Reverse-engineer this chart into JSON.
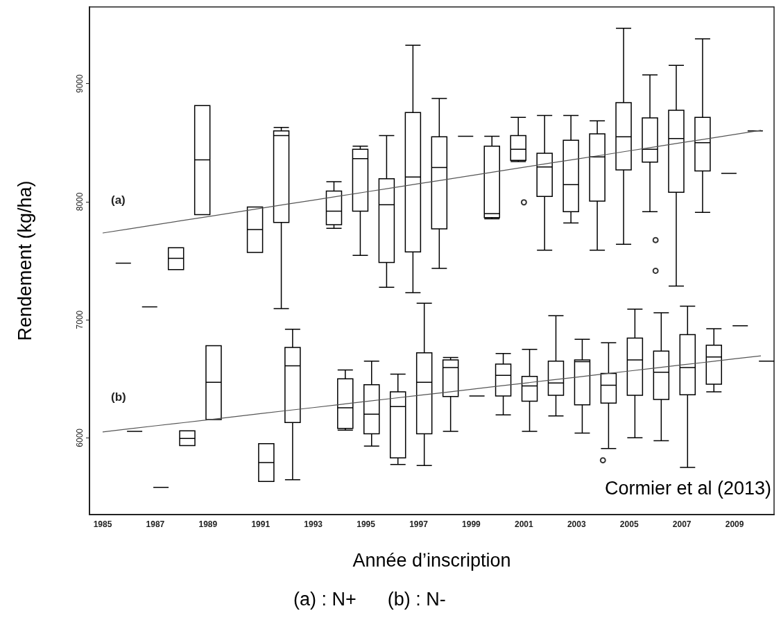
{
  "chart_data": {
    "type": "box",
    "xlabel": "Année d’inscription",
    "ylabel": "Rendement (kg/ha)",
    "categories": [
      "1985",
      null,
      "1987",
      null,
      "1989",
      null,
      "1991",
      null,
      "1993",
      null,
      "1995",
      null,
      "1997",
      null,
      "1999",
      null,
      "2001",
      null,
      "2003",
      null,
      "2005",
      null,
      "2007",
      null,
      "2009",
      null
    ],
    "ylim": [
      5350,
      9650
    ],
    "yticks": [
      6000,
      7000,
      8000,
      9000
    ],
    "series": [
      {
        "color": "#000000",
        "boxes": [
          null,
          {
            "low": 7480,
            "q1": 7480,
            "median": 7480,
            "q3": 7480,
            "high": 7480
          },
          {
            "low": 7110,
            "q1": 7110,
            "median": 7110,
            "q3": 7110,
            "high": 7110
          },
          {
            "low": 7425,
            "q1": 7425,
            "median": 7520,
            "q3": 7610,
            "high": 7610
          },
          {
            "low": 7890,
            "q1": 7890,
            "median": 8355,
            "q3": 8815,
            "high": 8815
          },
          null,
          {
            "low": 7570,
            "q1": 7570,
            "median": 7765,
            "q3": 7955,
            "high": 7955
          },
          {
            "low": 7095,
            "q1": 7825,
            "median": 8560,
            "q3": 8600,
            "high": 8630
          },
          null,
          {
            "low": 7775,
            "q1": 7805,
            "median": 7920,
            "q3": 8090,
            "high": 8170
          },
          {
            "low": 7545,
            "q1": 7920,
            "median": 8365,
            "q3": 8445,
            "high": 8470
          },
          {
            "low": 7275,
            "q1": 7485,
            "median": 7975,
            "q3": 8195,
            "high": 8560
          },
          {
            "low": 7230,
            "q1": 7575,
            "median": 8210,
            "q3": 8755,
            "high": 9325
          },
          {
            "low": 7435,
            "q1": 7770,
            "median": 8290,
            "q3": 8550,
            "high": 8875
          },
          {
            "low": 8555,
            "q1": 8555,
            "median": 8555,
            "q3": 8555,
            "high": 8555
          },
          {
            "low": 7855,
            "q1": 7865,
            "median": 7900,
            "q3": 8470,
            "high": 8555
          },
          {
            "low": 8340,
            "q1": 8350,
            "median": 8445,
            "q3": 8560,
            "high": 8715,
            "outliers": [
              7995
            ]
          },
          {
            "low": 7590,
            "q1": 8045,
            "median": 8295,
            "q3": 8410,
            "high": 8730
          },
          {
            "low": 7820,
            "q1": 7915,
            "median": 8145,
            "q3": 8520,
            "high": 8730
          },
          {
            "low": 7590,
            "q1": 8005,
            "median": 8380,
            "q3": 8575,
            "high": 8685
          },
          {
            "low": 7640,
            "q1": 8270,
            "median": 8550,
            "q3": 8840,
            "high": 9470
          },
          {
            "low": 7915,
            "q1": 8335,
            "median": 8445,
            "q3": 8710,
            "high": 9075,
            "outliers": [
              7675,
              7415
            ]
          },
          {
            "low": 7285,
            "q1": 8080,
            "median": 8535,
            "q3": 8775,
            "high": 9155
          },
          {
            "low": 7910,
            "q1": 8260,
            "median": 8500,
            "q3": 8715,
            "high": 9380
          },
          {
            "low": 8240,
            "q1": 8240,
            "median": 8240,
            "q3": 8240,
            "high": 8240
          },
          {
            "low": 8600,
            "q1": 8600,
            "median": 8600,
            "q3": 8600,
            "high": 8600
          }
        ]
      },
      {
        "color": "#000000",
        "boxes": [
          null,
          {
            "low": 6055,
            "q1": 6055,
            "median": 6055,
            "q3": 6055,
            "high": 6055
          },
          {
            "low": 5580,
            "q1": 5580,
            "median": 5580,
            "q3": 5580,
            "high": 5580
          },
          {
            "low": 5935,
            "q1": 5935,
            "median": 5995,
            "q3": 6060,
            "high": 6060
          },
          {
            "low": 6155,
            "q1": 6155,
            "median": 6470,
            "q3": 6780,
            "high": 6780
          },
          null,
          {
            "low": 5630,
            "q1": 5630,
            "median": 5790,
            "q3": 5950,
            "high": 5950
          },
          {
            "low": 5645,
            "q1": 6130,
            "median": 6610,
            "q3": 6765,
            "high": 6920
          },
          null,
          {
            "low": 6065,
            "q1": 6080,
            "median": 6255,
            "q3": 6500,
            "high": 6575
          },
          {
            "low": 5930,
            "q1": 6035,
            "median": 6200,
            "q3": 6450,
            "high": 6650
          },
          {
            "low": 5775,
            "q1": 5830,
            "median": 6265,
            "q3": 6390,
            "high": 6540
          },
          {
            "low": 5765,
            "q1": 6035,
            "median": 6470,
            "q3": 6720,
            "high": 7140
          },
          {
            "low": 6055,
            "q1": 6350,
            "median": 6595,
            "q3": 6660,
            "high": 6680
          },
          {
            "low": 6355,
            "q1": 6355,
            "median": 6355,
            "q3": 6355,
            "high": 6355
          },
          {
            "low": 6195,
            "q1": 6355,
            "median": 6530,
            "q3": 6625,
            "high": 6715
          },
          {
            "low": 6055,
            "q1": 6310,
            "median": 6440,
            "q3": 6520,
            "high": 6750
          },
          {
            "low": 6185,
            "q1": 6360,
            "median": 6465,
            "q3": 6650,
            "high": 7035
          },
          {
            "low": 6040,
            "q1": 6280,
            "median": 6645,
            "q3": 6660,
            "high": 6835
          },
          {
            "low": 5910,
            "q1": 6295,
            "median": 6445,
            "q3": 6545,
            "high": 6805,
            "outliers": [
              5810
            ]
          },
          {
            "low": 6000,
            "q1": 6360,
            "median": 6660,
            "q3": 6845,
            "high": 7090
          },
          {
            "low": 5975,
            "q1": 6325,
            "median": 6555,
            "q3": 6735,
            "high": 7060
          },
          {
            "low": 5750,
            "q1": 6365,
            "median": 6595,
            "q3": 6875,
            "high": 7115
          },
          {
            "low": 6390,
            "q1": 6455,
            "median": 6685,
            "q3": 6785,
            "high": 6925
          },
          {
            "low": 6950,
            "q1": 6950,
            "median": 6950,
            "q3": 6950,
            "high": 6950
          },
          {
            "low": 6650,
            "q1": 6650,
            "median": 6650,
            "q3": 6650,
            "high": 6650
          }
        ]
      },
      {
        "type": "line",
        "color": "#555555",
        "values": [
          7735,
          7770,
          7805,
          7840,
          7874,
          7909,
          7944,
          7979,
          8013,
          8048,
          8083,
          8118,
          8153,
          8187,
          8222,
          8257,
          8292,
          8327,
          8361,
          8396,
          8431,
          8466,
          8501,
          8535,
          8570,
          8605
        ]
      },
      {
        "type": "line",
        "color": "#555555",
        "values": [
          6050,
          6076,
          6102,
          6127,
          6153,
          6179,
          6205,
          6231,
          6256,
          6282,
          6308,
          6334,
          6360,
          6385,
          6411,
          6437,
          6463,
          6489,
          6514,
          6540,
          6566,
          6592,
          6618,
          6643,
          6669,
          6695
        ]
      }
    ],
    "annotations": [
      "(a)",
      "(b)",
      "Cormier et al (2013)",
      "(a) : N+      (b) : N-"
    ]
  }
}
